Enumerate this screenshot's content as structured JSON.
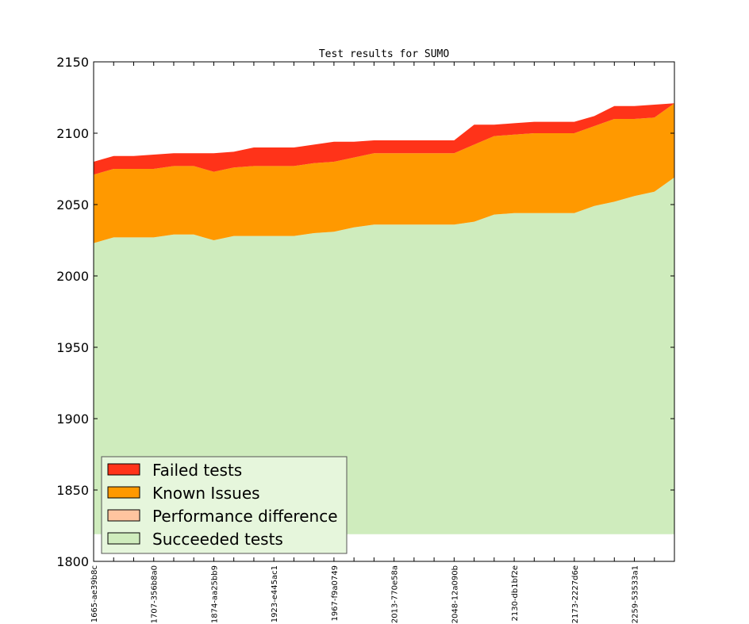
{
  "chart_data": {
    "type": "area",
    "title": "Test results for SUMO",
    "xlabel": "",
    "ylabel": "",
    "ylim": [
      1800,
      2150
    ],
    "yticks": [
      1800,
      1850,
      1900,
      1950,
      2000,
      2050,
      2100,
      2150
    ],
    "x_tick_labels": [
      "1665-ae39b8c",
      "1707-356b8a0",
      "1874-aa25bb9",
      "1923-e445ac1",
      "1967-f9a0749",
      "2013-770e58a",
      "2048-12a090b",
      "2130-db1bf2e",
      "2173-2227d6e",
      "2259-53533a1"
    ],
    "x_tick_every": 3,
    "legend_location": "lower-left",
    "series": [
      {
        "name": "Succeeded tests",
        "color": "#cfecbd",
        "values": [
          2023,
          2027,
          2027,
          2027,
          2029,
          2029,
          2025,
          2028,
          2028,
          2028,
          2028,
          2030,
          2031,
          2034,
          2036,
          2036,
          2036,
          2036,
          2036,
          2038,
          2043,
          2044,
          2044,
          2044,
          2044,
          2049,
          2052,
          2056,
          2059,
          2069
        ]
      },
      {
        "name": "Performance difference",
        "color": "#ffc49f",
        "values": [
          0,
          0,
          0,
          0,
          0,
          0,
          0,
          0,
          0,
          0,
          0,
          0,
          0,
          0,
          0,
          0,
          0,
          0,
          0,
          0,
          0,
          0,
          0,
          0,
          0,
          0,
          0,
          0,
          0,
          0
        ]
      },
      {
        "name": "Known Issues",
        "color": "#ff9900",
        "values": [
          48,
          48,
          48,
          48,
          48,
          48,
          48,
          48,
          49,
          49,
          49,
          49,
          49,
          49,
          50,
          50,
          50,
          50,
          50,
          54,
          55,
          55,
          56,
          56,
          56,
          56,
          58,
          54,
          52,
          52
        ]
      },
      {
        "name": "Failed tests",
        "color": "#ff3319",
        "values": [
          9,
          9,
          9,
          10,
          9,
          9,
          13,
          11,
          13,
          13,
          13,
          13,
          14,
          11,
          9,
          9,
          9,
          9,
          9,
          14,
          8,
          8,
          8,
          8,
          8,
          7,
          9,
          9,
          9,
          0
        ]
      }
    ],
    "legend": [
      "Failed tests",
      "Known Issues",
      "Performance difference",
      "Succeeded tests"
    ]
  }
}
